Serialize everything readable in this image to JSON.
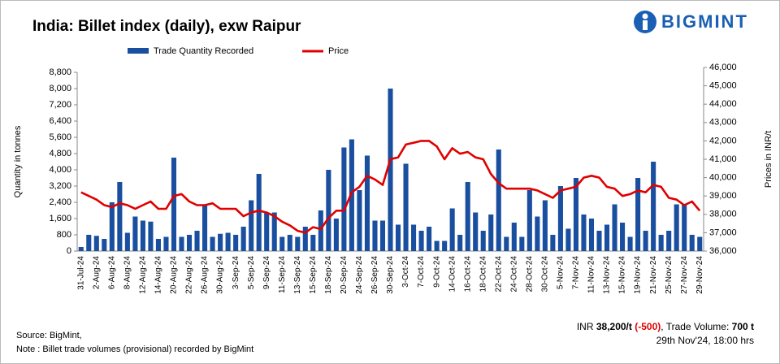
{
  "chart_data": {
    "type": "bar_line",
    "title": "India: Billet index (daily), exw Raipur",
    "logo": "BIGMINT",
    "y_label": "Quantity in tonnes",
    "y2_label": "Prices in INR/t",
    "source": "Source: BigMint,",
    "note": "Note : Billet trade volumes (provisional) recorded by BigMint",
    "summary": {
      "prefix": "INR ",
      "price": "38,200/t",
      "change": "(-500)",
      "volume_text": ", Trade Volume: ",
      "volume": "700 t",
      "timestamp": "29th Nov'24, 18:00 hrs"
    },
    "legend": "top",
    "categories": [
      "31-Jul-24",
      null,
      "2-Aug-24",
      null,
      "6-Aug-24",
      null,
      "8-Aug-24",
      null,
      "12-Aug-24",
      null,
      "14-Aug-24",
      null,
      "20-Aug-24",
      null,
      "22-Aug-24",
      null,
      "26-Aug-24",
      null,
      "30-Aug-24",
      null,
      "3-Sep-24",
      null,
      "5-Sep-24",
      null,
      "9-Sep-24",
      null,
      "11-Sep-24",
      null,
      "13-Sep-24",
      null,
      "15-Sep-24",
      null,
      "18-Sep-24",
      null,
      "20-Sep-24",
      null,
      "24-Sep-24",
      null,
      "26-Sep-24",
      null,
      "30-Sep-24",
      null,
      "3-Oct-24",
      null,
      "7-Oct-24",
      null,
      "9-Oct-24",
      null,
      "14-Oct-24",
      null,
      "16-Oct-24",
      null,
      "18-Oct-24",
      null,
      "22-Oct-24",
      null,
      "24-Oct-24",
      null,
      "28-Oct-24",
      null,
      "30-Oct-24",
      null,
      "5-Nov-24",
      null,
      "7-Nov-24",
      null,
      "11-Nov-24",
      null,
      "13-Nov-24",
      null,
      "15-Nov-24",
      null,
      "19-Nov-24",
      null,
      "21-Nov-24",
      null,
      "25-Nov-24",
      null,
      "27-Nov-24",
      null,
      "29-Nov-24"
    ],
    "series": [
      {
        "name": "Trade Quantity Recorded",
        "type": "bar",
        "color": "#1a4fa0",
        "values": [
          200,
          800,
          750,
          600,
          2400,
          3400,
          900,
          1700,
          1500,
          1450,
          600,
          700,
          4600,
          700,
          800,
          1000,
          2300,
          700,
          850,
          900,
          800,
          1200,
          2500,
          3800,
          1900,
          1900,
          700,
          800,
          700,
          1200,
          800,
          2000,
          4000,
          1600,
          5100,
          5500,
          3000,
          4700,
          1500,
          1500,
          8000,
          1300,
          4300,
          1300,
          1000,
          1200,
          500,
          500,
          2100,
          800,
          3400,
          1900,
          1000,
          1800,
          5000,
          700,
          1400,
          700,
          3000,
          1700,
          2500,
          800,
          3200,
          1100,
          3600,
          1800,
          1600,
          1000,
          1300,
          2300,
          1400,
          700,
          3600,
          1000,
          4400,
          800,
          1000,
          2300,
          2300,
          800,
          700
        ]
      },
      {
        "name": "Price",
        "type": "line",
        "axis": "y2",
        "color": "#e00000",
        "values": [
          39200,
          39000,
          38800,
          38500,
          38400,
          38600,
          38500,
          38300,
          38500,
          38700,
          38300,
          38300,
          39000,
          39100,
          38700,
          38500,
          38500,
          38600,
          38300,
          38300,
          38300,
          37900,
          38100,
          38200,
          38100,
          37900,
          37600,
          37400,
          37100,
          37000,
          37300,
          37200,
          37800,
          38200,
          38200,
          39200,
          39500,
          40100,
          39900,
          39600,
          41000,
          41100,
          41800,
          41900,
          42000,
          42000,
          41700,
          41000,
          41600,
          41300,
          41400,
          41100,
          41000,
          40200,
          39700,
          39400,
          39400,
          39400,
          39400,
          39300,
          39100,
          38900,
          39300,
          39400,
          39500,
          40000,
          40100,
          40000,
          39500,
          39400,
          39000,
          39100,
          39300,
          39200,
          39600,
          39500,
          38900,
          38800,
          38500,
          38700,
          38200
        ]
      }
    ],
    "ylim": [
      0,
      8800
    ],
    "yticks": [
      0,
      800,
      {
        "value": 1600,
        "label": "1,600"
      },
      {
        "value": 2400,
        "label": "2,400"
      },
      {
        "value": 3200,
        "label": "3,200"
      },
      {
        "value": 4000,
        "label": "4,000"
      },
      {
        "value": 4800,
        "label": "4,800"
      },
      {
        "value": 5600,
        "label": "5,600"
      },
      {
        "value": 6400,
        "label": "6,400"
      },
      {
        "value": 7200,
        "label": "7,200"
      },
      {
        "value": 8000,
        "label": "8,000"
      },
      {
        "value": 8800,
        "label": "8,800"
      }
    ],
    "y2lim": [
      36000,
      46000
    ],
    "y2ticks": [
      {
        "value": 36000,
        "label": "36,000"
      },
      {
        "value": 37000,
        "label": "37,000"
      },
      {
        "value": 38000,
        "label": "38,000"
      },
      {
        "value": 39000,
        "label": "39,000"
      },
      {
        "value": 40000,
        "label": "40,000"
      },
      {
        "value": 41000,
        "label": "41,000"
      },
      {
        "value": 42000,
        "label": "42,000"
      },
      {
        "value": 43000,
        "label": "43,000"
      },
      {
        "value": 44000,
        "label": "44,000"
      },
      {
        "value": 45000,
        "label": "45,000"
      },
      {
        "value": 46000,
        "label": "46,000"
      }
    ]
  }
}
